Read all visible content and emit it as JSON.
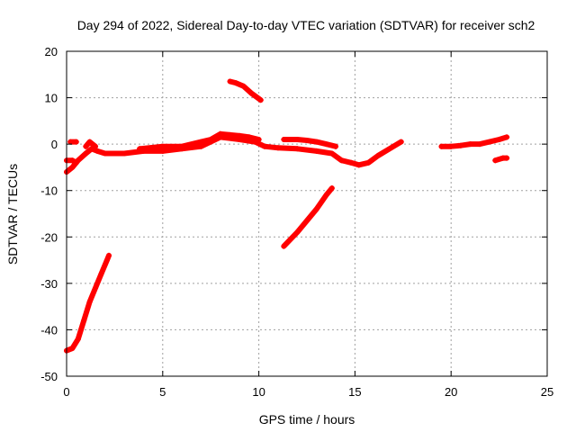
{
  "chart_data": {
    "type": "scatter",
    "title": "Day 294 of 2022, Sidereal Day-to-day VTEC variation (SDTVAR) for receiver sch2",
    "xlabel": "GPS time / hours",
    "ylabel": "SDTVAR / TECUs",
    "xlim": [
      0,
      25
    ],
    "ylim": [
      -50,
      20
    ],
    "xticks": [
      0,
      5,
      10,
      15,
      20,
      25
    ],
    "yticks": [
      -50,
      -40,
      -30,
      -20,
      -10,
      0,
      10,
      20
    ],
    "grid": true,
    "series_color": "#ff0000",
    "series": [
      {
        "name": "main-band",
        "points": [
          [
            0.0,
            -6
          ],
          [
            0.3,
            -5
          ],
          [
            0.6,
            -3.5
          ],
          [
            1.0,
            -2
          ],
          [
            1.3,
            -1
          ],
          [
            1.6,
            -1.5
          ],
          [
            2.0,
            -2
          ],
          [
            3.0,
            -2
          ],
          [
            4.0,
            -1.5
          ],
          [
            5.0,
            -1.5
          ],
          [
            6.0,
            -1
          ],
          [
            7.0,
            -0.5
          ],
          [
            7.5,
            0.5
          ],
          [
            8.0,
            1.5
          ],
          [
            9.0,
            1
          ],
          [
            9.8,
            0.5
          ],
          [
            10.3,
            -0.5
          ],
          [
            11.0,
            -0.8
          ],
          [
            12.0,
            -1
          ],
          [
            13.0,
            -1.5
          ],
          [
            13.8,
            -2
          ],
          [
            14.3,
            -3.5
          ],
          [
            14.8,
            -4
          ],
          [
            15.2,
            -4.5
          ],
          [
            15.7,
            -4
          ],
          [
            16.2,
            -2.5
          ],
          [
            16.8,
            -1
          ],
          [
            17.4,
            0.5
          ]
        ]
      },
      {
        "name": "early-upper-band",
        "points": [
          [
            0.0,
            -3.5
          ],
          [
            0.3,
            -3.5
          ],
          [
            0.5,
            -4
          ]
        ]
      },
      {
        "name": "early-blip",
        "points": [
          [
            0.2,
            0.5
          ],
          [
            0.5,
            0.5
          ]
        ]
      },
      {
        "name": "bump-near-1h",
        "points": [
          [
            1.0,
            -0.5
          ],
          [
            1.2,
            0.5
          ],
          [
            1.5,
            -0.5
          ]
        ]
      },
      {
        "name": "upper-band-5-9h",
        "points": [
          [
            3.8,
            -1
          ],
          [
            5.0,
            -0.5
          ],
          [
            6.0,
            -0.5
          ],
          [
            7.0,
            0.5
          ],
          [
            7.5,
            1
          ],
          [
            8.0,
            2.2
          ],
          [
            8.5,
            2
          ],
          [
            9.0,
            1.8
          ],
          [
            9.5,
            1.5
          ],
          [
            10.0,
            1
          ]
        ]
      },
      {
        "name": "mid-band-11-14h",
        "points": [
          [
            11.3,
            1
          ],
          [
            12.0,
            1
          ],
          [
            12.5,
            0.8
          ],
          [
            13.0,
            0.5
          ],
          [
            13.5,
            0
          ],
          [
            14.0,
            -0.5
          ]
        ]
      },
      {
        "name": "peak-9h",
        "points": [
          [
            8.5,
            13.5
          ],
          [
            8.8,
            13.2
          ],
          [
            9.2,
            12.5
          ],
          [
            9.6,
            11
          ],
          [
            10.1,
            9.5
          ]
        ]
      },
      {
        "name": "descent-11-14h",
        "points": [
          [
            11.3,
            -22
          ],
          [
            12.0,
            -19
          ],
          [
            12.5,
            -16.5
          ],
          [
            13.0,
            -14
          ],
          [
            13.5,
            -11
          ],
          [
            13.8,
            -9.5
          ]
        ]
      },
      {
        "name": "early-steep",
        "points": [
          [
            0.0,
            -44.5
          ],
          [
            0.3,
            -44
          ],
          [
            0.6,
            -42
          ],
          [
            0.9,
            -38
          ],
          [
            1.2,
            -34
          ],
          [
            1.5,
            -31
          ],
          [
            1.8,
            -28
          ],
          [
            2.1,
            -25
          ],
          [
            2.2,
            -24
          ]
        ]
      },
      {
        "name": "late-band",
        "points": [
          [
            19.5,
            -0.5
          ],
          [
            20.0,
            -0.5
          ],
          [
            20.5,
            -0.3
          ],
          [
            21.0,
            0
          ],
          [
            21.5,
            0
          ],
          [
            22.0,
            0.5
          ],
          [
            22.5,
            1
          ],
          [
            22.9,
            1.5
          ]
        ]
      },
      {
        "name": "late-tail",
        "points": [
          [
            22.3,
            -3.5
          ],
          [
            22.7,
            -3
          ],
          [
            22.9,
            -3
          ]
        ]
      }
    ]
  }
}
